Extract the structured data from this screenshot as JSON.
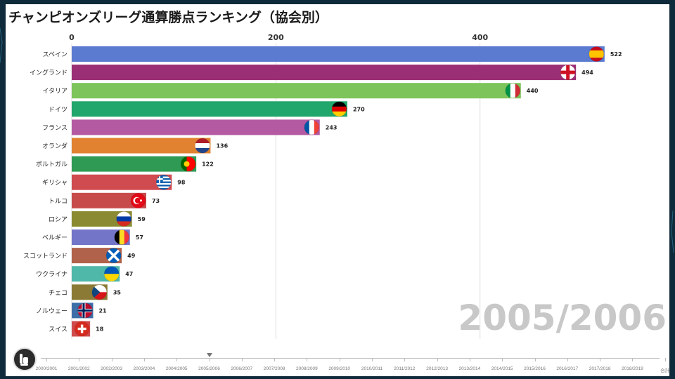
{
  "title": "チャンピオンズリーグ通算勝点ランキング（協会別）",
  "current_year": "2005/2006",
  "chart_data": {
    "type": "bar",
    "orientation": "horizontal",
    "title": "チャンピオンズリーグ通算勝点ランキング（協会別）",
    "xlim": [
      0,
      560
    ],
    "xticks": [
      0,
      200,
      400
    ],
    "categories": [
      "スペイン",
      "イングランド",
      "イタリア",
      "ドイツ",
      "フランス",
      "オランダ",
      "ポルトガル",
      "ギリシャ",
      "トルコ",
      "ロシア",
      "ベルギー",
      "スコットランド",
      "ウクライナ",
      "チェコ",
      "ノルウェー",
      "スイス"
    ],
    "values": [
      522,
      494,
      440,
      270,
      243,
      136,
      122,
      98,
      73,
      59,
      57,
      49,
      47,
      35,
      21,
      18
    ],
    "bar_colors": [
      "#5b7bd0",
      "#9a2f75",
      "#7dc45a",
      "#21a66c",
      "#b45aa2",
      "#e08230",
      "#2f9a54",
      "#cf4b50",
      "#c84b4b",
      "#8a8a33",
      "#7275c8",
      "#b0624a",
      "#4fb8a8",
      "#8b7a35",
      "#3d6ea8",
      "#d04c4c"
    ],
    "flags": [
      "spain-flag",
      "england-flag",
      "italy-flag",
      "germany-flag",
      "france-flag",
      "netherlands-flag",
      "portugal-flag",
      "greece-flag",
      "turkey-flag",
      "russia-flag",
      "belgium-flag",
      "scotland-flag",
      "ukraine-flag",
      "czech-flag",
      "norway-flag",
      "switzerland-flag"
    ]
  },
  "timeline": {
    "labels": [
      "2000/2001",
      "2001/2002",
      "2002/2003",
      "2003/2004",
      "2004/2005",
      "2005/2006",
      "2006/2007",
      "2007/2008",
      "2008/2009",
      "2009/2010",
      "2010/2011",
      "2011/2012",
      "2012/2013",
      "2013/2014",
      "2014/2015",
      "2015/2016",
      "2016/2017",
      "2017/2018",
      "2018/2019",
      "合計"
    ],
    "current_index": 5
  },
  "controls": {
    "play_icon": "play-pause-icon"
  },
  "colors": {
    "background": "#0f2a3a",
    "card": "#ffffff",
    "grid": "#dddddd"
  }
}
